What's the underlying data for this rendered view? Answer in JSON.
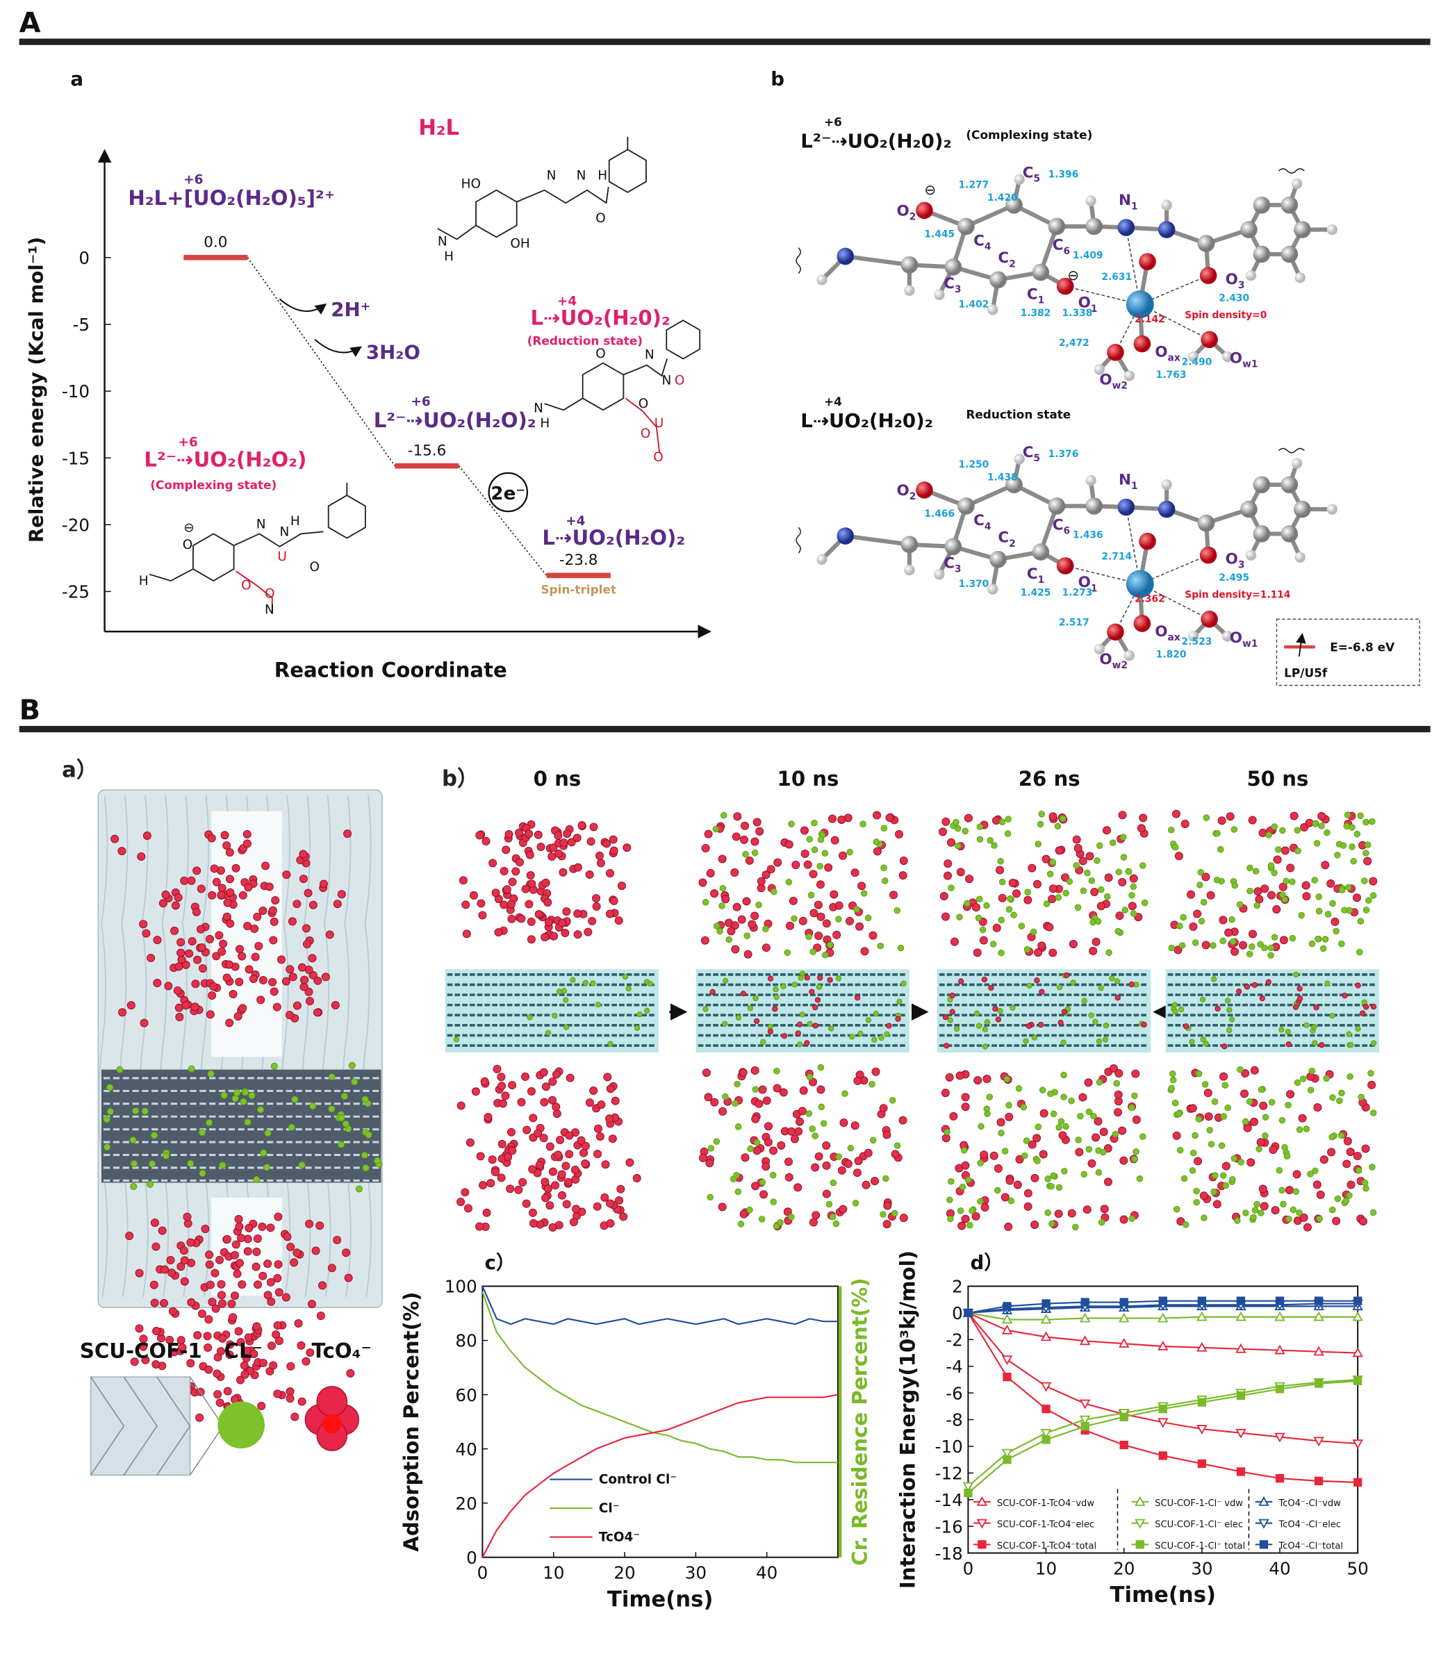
{
  "sections": {
    "A": "A",
    "B": "B"
  },
  "chart_data": [
    {
      "type": "energy",
      "ylabel": "Relative energy (Kcal mol⁻¹)",
      "xlabel": "Reaction Coordinate",
      "ylim": [
        -28,
        8
      ],
      "yticks": [
        0,
        -5,
        -10,
        -15,
        -20,
        -25
      ],
      "categories": [
        "H₂L+[UO₂(H₂O)₅]²⁺",
        "L²⁻⇢UO₂(H₂O)₂",
        "L⇢UO₂(H₂O)₂"
      ],
      "oxidation": [
        "+6",
        "+6",
        "+4"
      ],
      "values": [
        0.0,
        -15.6,
        -23.8
      ],
      "value_labels": [
        "0.0",
        "-15.6",
        "-23.8"
      ],
      "color": "#d9433f",
      "annotations": [
        "2H⁺",
        "3H₂O",
        "2e⁻",
        "Spin-triplet"
      ]
    },
    {
      "type": "line",
      "title": "c）",
      "xlabel": "Time(ns)",
      "ylabel": "Adsorption Percent(%)",
      "y2label": "Cr. Residence  Percent(%)",
      "y2color": "#7ab929",
      "x": [
        0,
        2,
        4,
        6,
        8,
        10,
        12,
        14,
        16,
        18,
        20,
        22,
        24,
        26,
        28,
        30,
        32,
        34,
        36,
        38,
        40,
        42,
        44,
        46,
        48,
        50
      ],
      "xlim": [
        0,
        50
      ],
      "xticks": [
        0,
        10,
        20,
        30,
        40
      ],
      "ylim": [
        0,
        100
      ],
      "yticks": [
        0,
        20,
        40,
        60,
        80,
        100
      ],
      "series": [
        {
          "name": "Control Cl⁻",
          "color": "#1f4e9c",
          "values": [
            100,
            88,
            86,
            88,
            87,
            86,
            88,
            87,
            86,
            87,
            88,
            86,
            87,
            88,
            87,
            86,
            87,
            88,
            86,
            87,
            88,
            87,
            86,
            88,
            87,
            87
          ]
        },
        {
          "name": "Cl⁻",
          "color": "#7ab929",
          "values": [
            98,
            83,
            76,
            70,
            66,
            62,
            59,
            56,
            54,
            52,
            50,
            48,
            46,
            45,
            43,
            42,
            40,
            39,
            37,
            37,
            36,
            36,
            35,
            35,
            35,
            35
          ]
        },
        {
          "name": "TcO4⁻",
          "color": "#e8263a",
          "values": [
            0,
            10,
            17,
            23,
            27,
            31,
            34,
            37,
            40,
            42,
            44,
            45,
            46,
            47,
            49,
            51,
            53,
            55,
            57,
            58,
            59,
            59,
            59,
            59,
            59,
            60
          ]
        }
      ]
    },
    {
      "type": "line",
      "title": "d）",
      "xlabel": "Time(ns)",
      "ylabel": "Interaction Energy(10³kj/mol)",
      "x": [
        0,
        5,
        10,
        15,
        20,
        25,
        30,
        35,
        40,
        45,
        50
      ],
      "xlim": [
        0,
        50
      ],
      "xticks": [
        0,
        10,
        20,
        30,
        40,
        50
      ],
      "ylim": [
        -18,
        2
      ],
      "yticks": [
        2,
        0,
        -2,
        -4,
        -6,
        -8,
        -10,
        -12,
        -14,
        -16,
        -18
      ],
      "series": [
        {
          "name": "SCU-COF-1-TcO4⁻vdw",
          "color": "#e8263a",
          "marker": "triangle-up-open",
          "values": [
            0,
            -1.3,
            -1.8,
            -2.1,
            -2.3,
            -2.5,
            -2.6,
            -2.7,
            -2.8,
            -2.9,
            -3.0
          ]
        },
        {
          "name": "SCU-COF-1-TcO4⁻elec",
          "color": "#e8263a",
          "marker": "triangle-down-open",
          "values": [
            0,
            -3.5,
            -5.5,
            -6.8,
            -7.6,
            -8.2,
            -8.7,
            -9.0,
            -9.3,
            -9.6,
            -9.8
          ]
        },
        {
          "name": "SCU-COF-1-TcO4⁻total",
          "color": "#e8263a",
          "marker": "square",
          "values": [
            0,
            -4.8,
            -7.2,
            -8.8,
            -9.9,
            -10.7,
            -11.3,
            -11.9,
            -12.4,
            -12.6,
            -12.7
          ]
        },
        {
          "name": "SCU-COF-1-Cl⁻ vdw",
          "color": "#7ab929",
          "marker": "triangle-up-open",
          "values": [
            0,
            -0.5,
            -0.5,
            -0.4,
            -0.4,
            -0.4,
            -0.3,
            -0.3,
            -0.3,
            -0.3,
            -0.3
          ]
        },
        {
          "name": "SCU-COF-1-Cl⁻ elec",
          "color": "#7ab929",
          "marker": "triangle-down-open",
          "values": [
            -13,
            -10.5,
            -9,
            -8,
            -7.5,
            -7,
            -6.5,
            -6,
            -5.5,
            -5.2,
            -5
          ]
        },
        {
          "name": "SCU-COF-1-Cl⁻ total",
          "color": "#7ab929",
          "marker": "square",
          "values": [
            -13.5,
            -11,
            -9.5,
            -8.5,
            -7.8,
            -7.2,
            -6.7,
            -6.2,
            -5.7,
            -5.3,
            -5.1
          ]
        },
        {
          "name": "TcO4⁻-Cl⁻vdw",
          "color": "#1f4e9c",
          "marker": "triangle-up-open",
          "values": [
            0,
            0.2,
            0.3,
            0.4,
            0.4,
            0.5,
            0.5,
            0.5,
            0.5,
            0.5,
            0.5
          ]
        },
        {
          "name": "TcO4⁻-Cl⁻elec",
          "color": "#1f4e9c",
          "marker": "triangle-down-open",
          "values": [
            0,
            0.3,
            0.4,
            0.5,
            0.5,
            0.6,
            0.6,
            0.6,
            0.6,
            0.7,
            0.7
          ]
        },
        {
          "name": "TcO4⁻-Cl⁻total",
          "color": "#1f4e9c",
          "marker": "square",
          "values": [
            0,
            0.5,
            0.7,
            0.8,
            0.8,
            0.9,
            0.9,
            0.9,
            0.9,
            0.9,
            0.9
          ]
        }
      ]
    }
  ],
  "panel_a": {
    "label": "a",
    "h2l": "H₂L",
    "reduced": {
      "title": "L⇢UO₂(H₂0)₂",
      "ox": "+4",
      "note": "(Reduction state)"
    },
    "complex": {
      "title": "L²⁻⇢UO₂(H₂O₂)",
      "ox": "+6",
      "note": "(Complexing state)"
    },
    "atoms": {
      "h2l": [
        "HO",
        "N",
        "N",
        "H",
        "O",
        "OH",
        "N",
        "H"
      ],
      "reduced": [
        "O",
        "N",
        "N",
        "O",
        "O",
        "U",
        "O",
        "O",
        "N",
        "H"
      ],
      "complex": [
        "⊖",
        "O",
        "N",
        "N",
        "H",
        "O",
        "O",
        "U",
        "O",
        "N",
        "H"
      ]
    }
  },
  "panel_b": {
    "label": "b",
    "states": [
      {
        "title": "L²⁻⇢UO₂(H₂0)₂",
        "ox": "+6",
        "note": "(Complexing state)",
        "bonds": [
          "1.277",
          "1.420",
          "1.396",
          "1.445",
          "1.409",
          "2.631",
          "2.430",
          "1.402",
          "1.382",
          "1.338",
          "2.142",
          "2,472",
          "2.490",
          "1.763"
        ],
        "spin": "Spin density=0",
        "charges": [
          "⊖",
          "⊖"
        ]
      },
      {
        "title": "L⇢UO₂(H₂0)₂",
        "ox": "+4",
        "note": "Reduction state",
        "bonds": [
          "1.250",
          "1.438",
          "1.376",
          "1.466",
          "1.436",
          "2.714",
          "2.495",
          "1.370",
          "1.425",
          "1.273",
          "2.362",
          "2.517",
          "2.523",
          "1.820"
        ],
        "spin": "Spin density=1.114"
      }
    ],
    "atoms": [
      {
        "base": "O",
        "sub": "2"
      },
      {
        "base": "C",
        "sub": "4"
      },
      {
        "base": "C",
        "sub": "5"
      },
      {
        "base": "C",
        "sub": "6"
      },
      {
        "base": "N",
        "sub": "1"
      },
      {
        "base": "C",
        "sub": "3"
      },
      {
        "base": "C",
        "sub": "2"
      },
      {
        "base": "C",
        "sub": "1"
      },
      {
        "base": "O",
        "sub": "1"
      },
      {
        "base": "O",
        "sub": "3"
      },
      {
        "base": "O",
        "sub": "ax"
      },
      {
        "base": "O",
        "sub": "w2"
      },
      {
        "base": "O",
        "sub": "w1"
      }
    ],
    "orbital": {
      "energy": "E=-6.8 eV",
      "name": "LP/U5f"
    }
  },
  "panel_B": {
    "a": {
      "label": "a）",
      "legend": [
        "SCU-COF-1",
        "CL⁻",
        "TcO₄⁻"
      ]
    },
    "b": {
      "label": "b）",
      "times": [
        "0 ns",
        "10 ns",
        "26 ns",
        "50 ns"
      ]
    }
  }
}
